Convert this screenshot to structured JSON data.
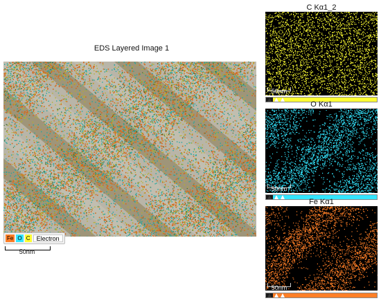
{
  "main": {
    "title": "EDS Layered Image 1",
    "scale_label": "50nm",
    "legend": [
      {
        "label": "Fe",
        "color": "#ff7f27"
      },
      {
        "label": "O",
        "color": "#33e6ff"
      },
      {
        "label": "C",
        "color": "#ffff33"
      },
      {
        "label": "Electron",
        "color": "#ffffff"
      }
    ]
  },
  "maps": [
    {
      "title": "C Kα1_2",
      "scale_label": "50nm",
      "color": "#ffff33",
      "lut_color": "#ffff33"
    },
    {
      "title": "O Kα1",
      "scale_label": "50nm",
      "color": "#33e6ff",
      "lut_color": "#33e6ff"
    },
    {
      "title": "Fe Kα1",
      "scale_label": "50nm",
      "color": "#ff7f27",
      "lut_color": "#ff7f27"
    }
  ]
}
